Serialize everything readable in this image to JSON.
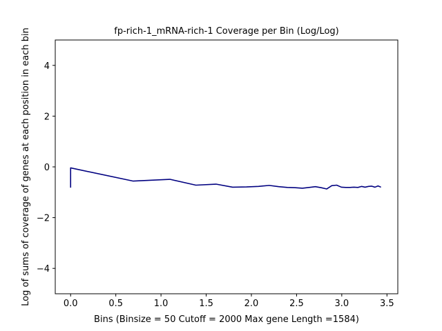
{
  "chart_data": {
    "type": "line",
    "title": "fp-rich-1_mRNA-rich-1 Coverage per Bin (Log/Log)",
    "xlabel": "Bins  (Binsize = 50 Cutoff = 2000 Max gene Length =1584)",
    "ylabel": "Log of sums of coverage of genes at each position in each bin",
    "xlim": [
      -0.17,
      3.62
    ],
    "ylim": [
      -5,
      5
    ],
    "xticks": [
      0.0,
      0.5,
      1.0,
      1.5,
      2.0,
      2.5,
      3.0,
      3.5
    ],
    "xtick_labels": [
      "0.0",
      "0.5",
      "1.0",
      "1.5",
      "2.0",
      "2.5",
      "3.0",
      "3.5"
    ],
    "yticks": [
      -4,
      -2,
      0,
      2,
      4
    ],
    "ytick_labels": [
      "−4",
      "−2",
      "0",
      "2",
      "4"
    ],
    "grid": false,
    "line_color": "#000080",
    "series": [
      {
        "x": [
          0.0,
          0.0,
          0.693,
          1.099,
          1.386,
          1.609,
          1.792,
          1.946,
          2.079,
          2.197,
          2.303,
          2.398,
          2.485,
          2.565,
          2.639,
          2.708,
          2.773,
          2.833,
          2.89,
          2.944,
          2.996,
          3.045,
          3.091,
          3.135,
          3.178,
          3.219,
          3.258,
          3.296,
          3.332,
          3.367,
          3.401,
          3.434
        ],
        "y": [
          -0.82,
          -0.04,
          -0.56,
          -0.49,
          -0.72,
          -0.68,
          -0.8,
          -0.79,
          -0.77,
          -0.73,
          -0.78,
          -0.81,
          -0.82,
          -0.84,
          -0.81,
          -0.78,
          -0.82,
          -0.87,
          -0.74,
          -0.72,
          -0.8,
          -0.81,
          -0.81,
          -0.8,
          -0.81,
          -0.77,
          -0.8,
          -0.77,
          -0.76,
          -0.8,
          -0.75,
          -0.8
        ]
      }
    ]
  }
}
